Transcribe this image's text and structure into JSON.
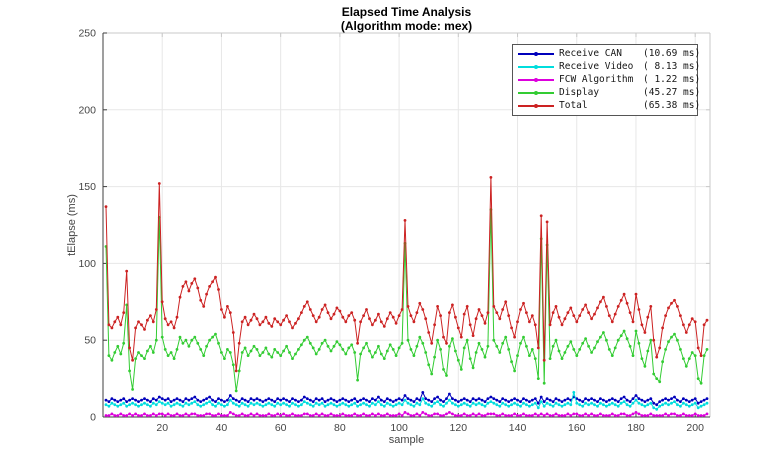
{
  "chart_data": {
    "type": "line",
    "title": "Elapsed Time Analysis",
    "subtitle": "(Algorithm mode: mex)",
    "xlabel": "sample",
    "ylabel": "tElapse (ms)",
    "xlim": [
      0,
      205
    ],
    "ylim": [
      0,
      250
    ],
    "xticks": [
      20,
      40,
      60,
      80,
      100,
      120,
      140,
      160,
      180,
      200
    ],
    "yticks": [
      0,
      50,
      100,
      150,
      200,
      250
    ],
    "grid": true,
    "legend_position": "top-right",
    "x_start": 1,
    "n_samples": 204,
    "series": [
      {
        "name": "Receive CAN",
        "legend_value": "(10.69 ms)",
        "color": "#0000bb",
        "values": [
          11,
          10,
          12,
          11,
          10,
          11,
          12,
          10,
          11,
          12,
          11,
          10,
          11,
          12,
          11,
          10,
          12,
          11,
          13,
          12,
          11,
          12,
          10,
          11,
          12,
          11,
          10,
          12,
          11,
          12,
          13,
          11,
          10,
          11,
          12,
          13,
          11,
          10,
          12,
          11,
          10,
          11,
          14,
          12,
          11,
          10,
          12,
          11,
          10,
          12,
          11,
          12,
          11,
          10,
          11,
          12,
          11,
          10,
          12,
          11,
          12,
          11,
          10,
          12,
          11,
          10,
          11,
          13,
          12,
          11,
          10,
          12,
          11,
          12,
          10,
          11,
          12,
          11,
          10,
          11,
          12,
          11,
          10,
          11,
          12,
          10,
          11,
          12,
          11,
          10,
          12,
          11,
          13,
          11,
          10,
          12,
          11,
          10,
          11,
          12,
          11,
          14,
          12,
          11,
          10,
          12,
          11,
          16,
          12,
          11,
          10,
          12,
          13,
          11,
          10,
          12,
          15,
          12,
          11,
          10,
          11,
          12,
          11,
          10,
          12,
          11,
          12,
          11,
          10,
          12,
          13,
          12,
          11,
          10,
          12,
          11,
          10,
          11,
          12,
          11,
          10,
          12,
          11,
          10,
          11,
          12,
          9,
          13,
          10,
          12,
          11,
          10,
          12,
          11,
          10,
          11,
          12,
          11,
          13,
          12,
          11,
          10,
          12,
          11,
          12,
          11,
          10,
          12,
          11,
          10,
          11,
          12,
          11,
          10,
          12,
          13,
          11,
          10,
          12,
          14,
          12,
          11,
          10,
          11,
          12,
          9,
          8,
          10,
          11,
          12,
          11,
          12,
          13,
          11,
          10,
          12,
          11,
          10,
          11,
          12,
          9,
          10,
          11,
          12
        ]
      },
      {
        "name": "Receive Video",
        "legend_value": "( 8.13 ms)",
        "color": "#00dddd",
        "values": [
          8,
          7,
          9,
          8,
          7,
          8,
          9,
          7,
          8,
          9,
          8,
          7,
          8,
          9,
          8,
          7,
          9,
          8,
          10,
          9,
          8,
          9,
          7,
          8,
          9,
          8,
          7,
          9,
          8,
          9,
          10,
          8,
          7,
          8,
          9,
          10,
          8,
          7,
          9,
          8,
          7,
          8,
          11,
          9,
          8,
          7,
          9,
          8,
          7,
          9,
          8,
          9,
          8,
          7,
          8,
          9,
          8,
          7,
          9,
          8,
          9,
          8,
          7,
          9,
          8,
          7,
          8,
          10,
          9,
          8,
          7,
          9,
          8,
          9,
          7,
          8,
          9,
          8,
          7,
          8,
          9,
          8,
          7,
          8,
          9,
          7,
          8,
          9,
          8,
          7,
          9,
          8,
          10,
          8,
          7,
          9,
          8,
          7,
          8,
          9,
          8,
          11,
          9,
          8,
          7,
          9,
          8,
          12,
          9,
          8,
          7,
          9,
          10,
          8,
          7,
          9,
          11,
          9,
          8,
          7,
          8,
          9,
          8,
          7,
          9,
          8,
          9,
          8,
          7,
          9,
          10,
          9,
          8,
          7,
          9,
          8,
          7,
          8,
          9,
          8,
          7,
          9,
          8,
          7,
          8,
          9,
          6,
          10,
          7,
          9,
          8,
          7,
          9,
          8,
          7,
          8,
          9,
          8,
          16,
          9,
          8,
          7,
          9,
          8,
          9,
          8,
          7,
          9,
          8,
          7,
          8,
          9,
          8,
          7,
          9,
          10,
          8,
          7,
          9,
          11,
          9,
          8,
          7,
          8,
          9,
          6,
          5,
          7,
          8,
          9,
          8,
          9,
          10,
          8,
          7,
          9,
          8,
          7,
          8,
          9,
          6,
          7,
          8,
          9
        ]
      },
      {
        "name": "FCW Algorithm",
        "legend_value": "( 1.22 ms)",
        "color": "#dd00dd",
        "values": [
          1,
          1,
          2,
          1,
          1,
          2,
          1,
          1,
          2,
          1,
          2,
          1,
          1,
          2,
          1,
          1,
          2,
          1,
          2,
          2,
          1,
          2,
          1,
          1,
          2,
          1,
          1,
          2,
          1,
          2,
          2,
          1,
          1,
          1,
          2,
          2,
          1,
          1,
          2,
          1,
          1,
          1,
          3,
          2,
          1,
          1,
          2,
          1,
          1,
          2,
          1,
          2,
          1,
          1,
          1,
          2,
          1,
          1,
          2,
          1,
          2,
          1,
          1,
          2,
          1,
          1,
          1,
          2,
          2,
          1,
          1,
          2,
          1,
          2,
          1,
          1,
          2,
          1,
          1,
          1,
          2,
          1,
          1,
          1,
          2,
          1,
          1,
          2,
          1,
          1,
          2,
          1,
          2,
          1,
          1,
          2,
          1,
          1,
          1,
          2,
          1,
          3,
          2,
          1,
          1,
          2,
          1,
          3,
          2,
          1,
          1,
          2,
          2,
          1,
          1,
          2,
          3,
          2,
          1,
          1,
          1,
          2,
          1,
          1,
          2,
          1,
          2,
          1,
          1,
          2,
          2,
          2,
          1,
          1,
          2,
          1,
          1,
          1,
          2,
          1,
          1,
          2,
          1,
          1,
          1,
          2,
          1,
          2,
          1,
          2,
          1,
          1,
          2,
          1,
          1,
          1,
          2,
          1,
          2,
          2,
          1,
          1,
          2,
          1,
          2,
          1,
          1,
          2,
          1,
          1,
          1,
          2,
          1,
          1,
          2,
          2,
          1,
          1,
          2,
          3,
          2,
          1,
          1,
          1,
          2,
          1,
          1,
          1,
          1,
          2,
          1,
          2,
          2,
          1,
          1,
          2,
          1,
          1,
          1,
          2,
          1,
          1,
          1,
          2
        ]
      },
      {
        "name": "Display",
        "legend_value": "(45.27 ms)",
        "color": "#33cc33",
        "values": [
          111,
          40,
          37,
          42,
          46,
          41,
          48,
          73,
          30,
          18,
          38,
          42,
          40,
          38,
          43,
          46,
          42,
          50,
          130,
          52,
          44,
          40,
          42,
          38,
          44,
          52,
          48,
          50,
          46,
          50,
          52,
          48,
          44,
          40,
          46,
          50,
          52,
          54,
          48,
          42,
          38,
          44,
          42,
          34,
          17,
          30,
          42,
          45,
          40,
          43,
          46,
          44,
          40,
          42,
          45,
          41,
          39,
          44,
          42,
          40,
          43,
          46,
          42,
          38,
          41,
          44,
          47,
          50,
          52,
          48,
          45,
          41,
          44,
          48,
          50,
          46,
          43,
          46,
          49,
          47,
          44,
          41,
          45,
          47,
          42,
          24,
          41,
          45,
          48,
          43,
          39,
          42,
          46,
          41,
          38,
          43,
          47,
          44,
          40,
          45,
          48,
          113,
          50,
          44,
          40,
          46,
          52,
          48,
          42,
          34,
          28,
          39,
          50,
          44,
          31,
          27,
          46,
          51,
          43,
          37,
          31,
          45,
          50,
          38,
          32,
          42,
          48,
          44,
          39,
          46,
          135,
          50,
          46,
          42,
          48,
          52,
          44,
          36,
          30,
          40,
          48,
          52,
          46,
          40,
          44,
          38,
          25,
          116,
          22,
          112,
          38,
          46,
          50,
          43,
          38,
          42,
          46,
          49,
          44,
          40,
          44,
          48,
          51,
          46,
          42,
          45,
          49,
          52,
          55,
          50,
          44,
          40,
          45,
          50,
          53,
          56,
          51,
          46,
          40,
          56,
          48,
          38,
          33,
          43,
          50,
          28,
          25,
          23,
          36,
          44,
          49,
          52,
          54,
          50,
          44,
          38,
          33,
          38,
          42,
          40,
          25,
          22,
          40,
          44
        ]
      },
      {
        "name": "Total",
        "legend_value": "(65.38 ms)",
        "color": "#cc2222",
        "values": [
          137,
          60,
          58,
          62,
          65,
          60,
          68,
          95,
          45,
          37,
          58,
          62,
          60,
          57,
          63,
          66,
          62,
          70,
          152,
          75,
          64,
          60,
          62,
          58,
          65,
          78,
          85,
          88,
          82,
          87,
          90,
          84,
          76,
          72,
          80,
          85,
          88,
          91,
          83,
          70,
          65,
          72,
          68,
          55,
          30,
          48,
          62,
          65,
          60,
          63,
          67,
          64,
          60,
          62,
          65,
          61,
          59,
          64,
          62,
          60,
          63,
          66,
          62,
          58,
          61,
          64,
          68,
          72,
          75,
          70,
          66,
          62,
          65,
          70,
          73,
          68,
          64,
          67,
          71,
          69,
          65,
          62,
          66,
          68,
          63,
          48,
          62,
          66,
          70,
          64,
          60,
          63,
          67,
          62,
          59,
          64,
          68,
          65,
          61,
          66,
          70,
          128,
          72,
          66,
          62,
          68,
          74,
          70,
          64,
          55,
          48,
          60,
          72,
          66,
          52,
          48,
          68,
          73,
          65,
          58,
          52,
          67,
          72,
          60,
          53,
          64,
          70,
          66,
          61,
          68,
          156,
          72,
          68,
          64,
          70,
          75,
          66,
          58,
          52,
          62,
          70,
          74,
          68,
          62,
          66,
          60,
          45,
          131,
          37,
          127,
          60,
          68,
          72,
          65,
          60,
          64,
          68,
          71,
          66,
          62,
          66,
          70,
          73,
          68,
          64,
          67,
          71,
          75,
          78,
          72,
          66,
          62,
          67,
          72,
          76,
          80,
          74,
          68,
          62,
          80,
          70,
          60,
          55,
          65,
          72,
          50,
          39,
          45,
          58,
          66,
          71,
          74,
          76,
          72,
          66,
          60,
          55,
          60,
          64,
          62,
          45,
          40,
          60,
          63
        ]
      }
    ]
  }
}
